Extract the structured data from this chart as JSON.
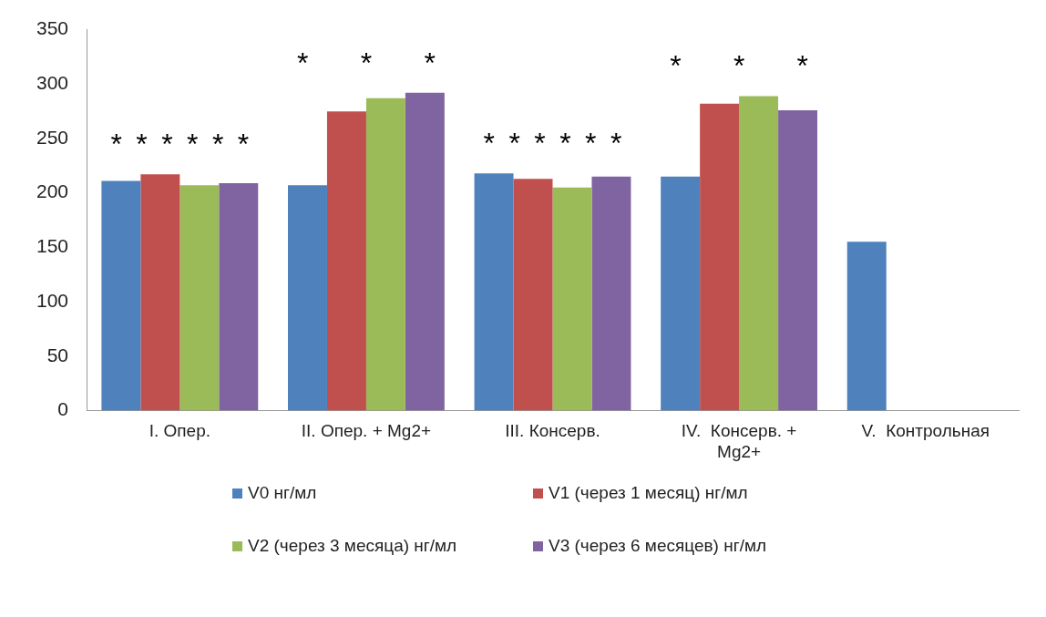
{
  "chart_data": {
    "type": "bar",
    "categories": [
      "I. Опер.",
      "II. Опер. + Mg2+",
      "III. Консерв.",
      "IV.  Консерв. + Mg2+",
      "V.  Контрольная"
    ],
    "series": [
      {
        "name": "V0 нг/мл",
        "color": "#4f81bd",
        "values": [
          211,
          207,
          218,
          215,
          155
        ]
      },
      {
        "name": "V1 (через 1 месяц) нг/мл",
        "color": "#c0504d",
        "values": [
          217,
          275,
          213,
          282,
          null
        ]
      },
      {
        "name": "V2 (через 3 месяца) нг/мл",
        "color": "#9bbb59",
        "values": [
          207,
          287,
          205,
          289,
          null
        ]
      },
      {
        "name": "V3 (через 6 месяцев) нг/мл",
        "color": "#8064a2",
        "values": [
          209,
          292,
          215,
          276,
          null
        ]
      }
    ],
    "ylim": [
      0,
      350
    ],
    "yticks": [
      0,
      50,
      100,
      150,
      200,
      250,
      300,
      350
    ],
    "grid": false,
    "legend": "bottom",
    "annotations": [
      "******",
      "***",
      "******",
      "***"
    ]
  }
}
